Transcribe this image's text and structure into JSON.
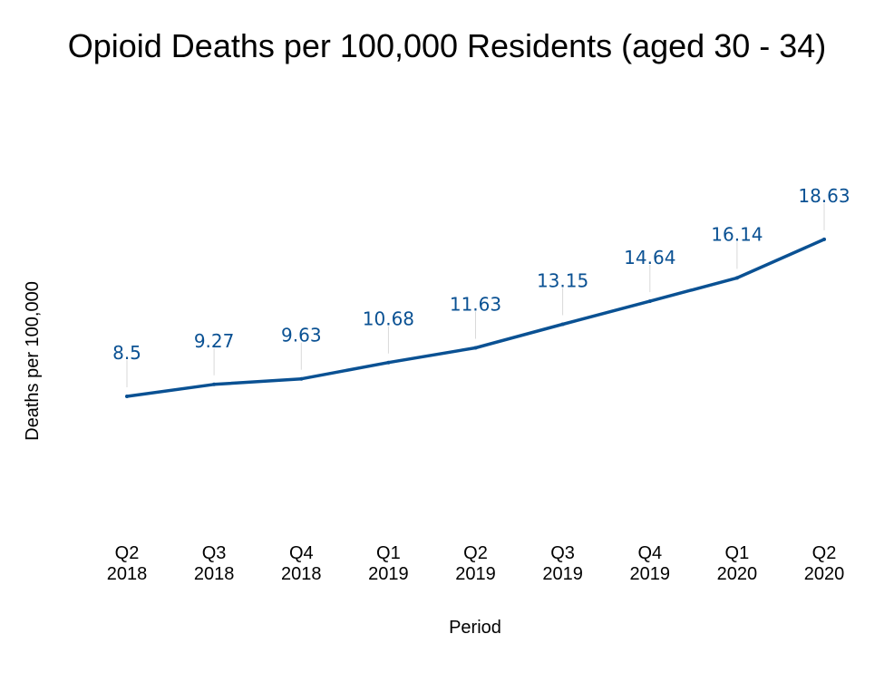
{
  "chart_data": {
    "type": "line",
    "title": "Opioid Deaths per 100,000 Residents (aged 30 - 34)",
    "xlabel": "Period",
    "ylabel": "Deaths per 100,000",
    "categories": [
      [
        "Q2",
        "2018"
      ],
      [
        "Q3",
        "2018"
      ],
      [
        "Q4",
        "2018"
      ],
      [
        "Q1",
        "2019"
      ],
      [
        "Q2",
        "2019"
      ],
      [
        "Q3",
        "2019"
      ],
      [
        "Q4",
        "2019"
      ],
      [
        "Q1",
        "2020"
      ],
      [
        "Q2",
        "2020"
      ]
    ],
    "series": [
      {
        "values": [
          8.5,
          9.27,
          9.63,
          10.68,
          11.63,
          13.15,
          14.64,
          16.14,
          18.63
        ],
        "data_labels": [
          "8.5",
          "9.27",
          "9.63",
          "10.68",
          "11.63",
          "13.15",
          "14.64",
          "16.14",
          "18.63"
        ],
        "color": "#0a5193"
      }
    ],
    "grid": false,
    "legend": "none",
    "y_axis_visible": false
  }
}
